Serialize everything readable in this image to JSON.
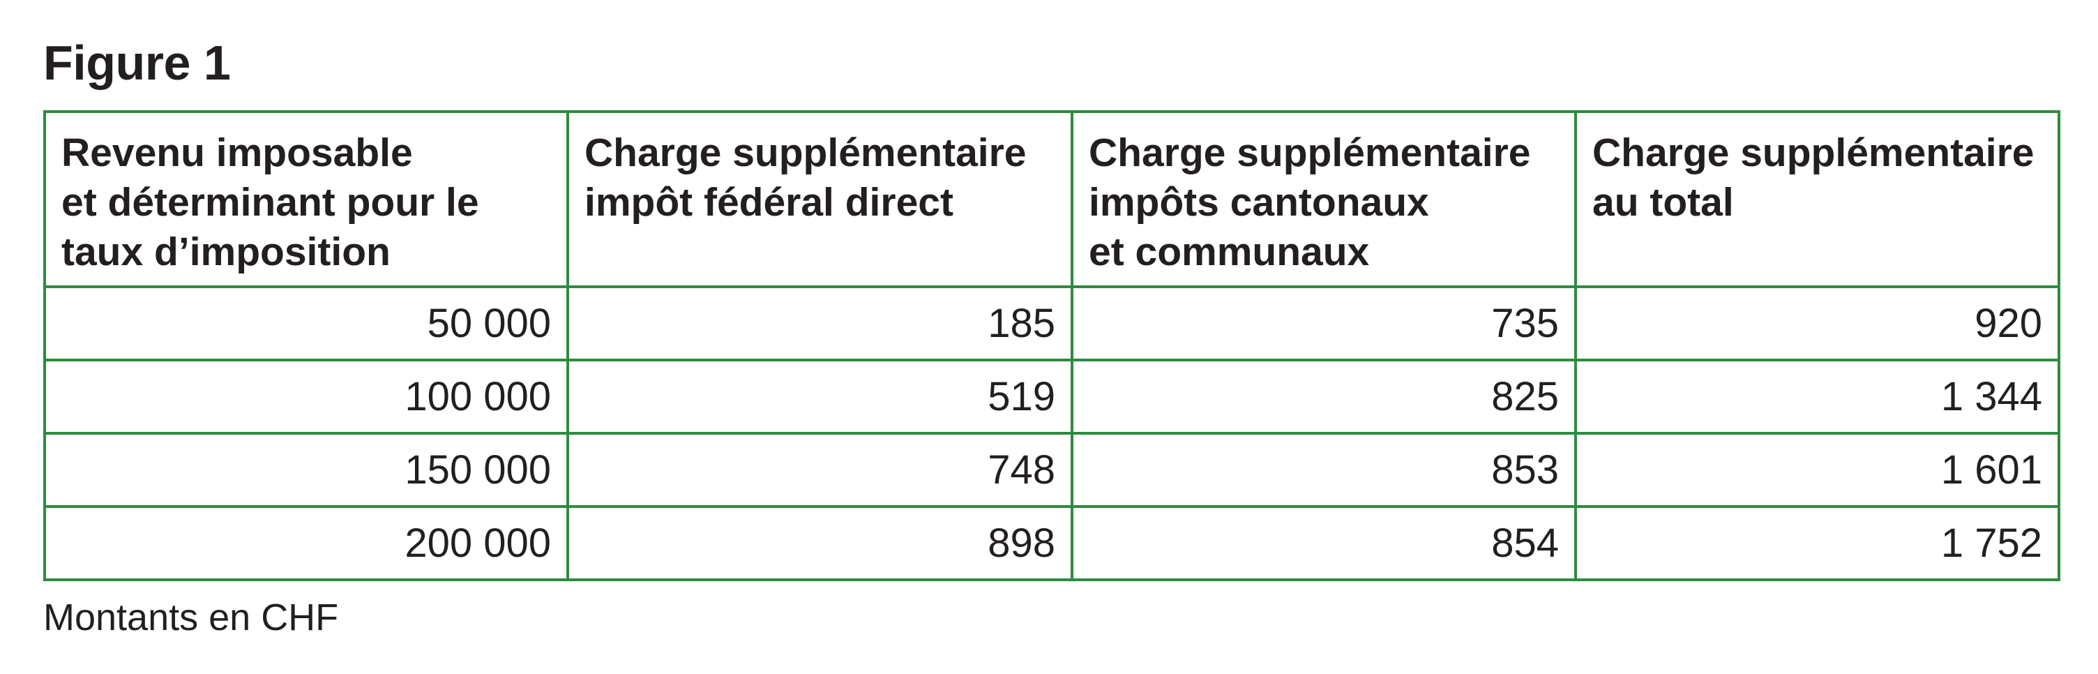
{
  "figure_title": "Figure 1",
  "table": {
    "headers": [
      [
        "Revenu imposable",
        "et déterminant pour le",
        "taux d’imposition"
      ],
      [
        "Charge supplémentaire",
        "impôt fédéral direct"
      ],
      [
        "Charge supplémentaire",
        "impôts cantonaux",
        "et communaux"
      ],
      [
        "Charge supplémentaire",
        "au total"
      ]
    ],
    "rows": [
      [
        "50 000",
        "185",
        "735",
        "920"
      ],
      [
        "100 000",
        "519",
        "825",
        "1 344"
      ],
      [
        "150 000",
        "748",
        "853",
        "1 601"
      ],
      [
        "200 000",
        "898",
        "854",
        "1 752"
      ]
    ]
  },
  "note": "Montants en CHF",
  "colors": {
    "border": "#2e8b3e",
    "text": "#231f20"
  }
}
